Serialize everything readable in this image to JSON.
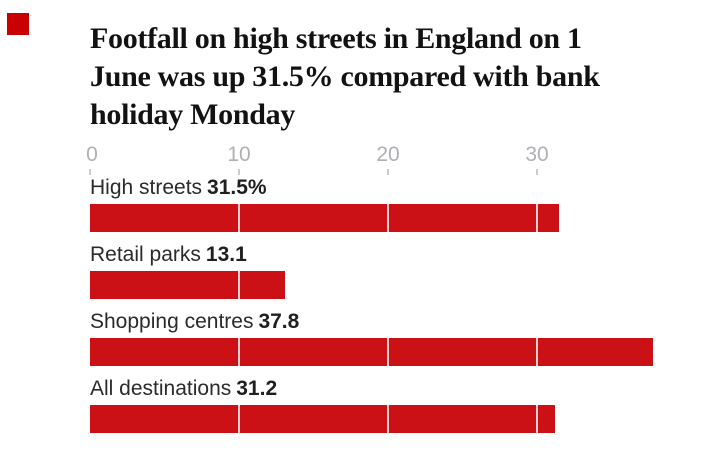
{
  "brand": {
    "square_color": "#c70000"
  },
  "title": {
    "full": "Footfall on high streets in England on 1 June was up 31.5% compared with bank holiday Monday",
    "lines": [
      "Footfall on high streets in England on 1",
      "June was up 31.5% compared with bank",
      "holiday Monday"
    ]
  },
  "chart_data": {
    "type": "bar",
    "orientation": "horizontal",
    "title": "Footfall on high streets in England on 1 June was up 31.5% compared with bank holiday Monday",
    "categories": [
      "High streets",
      "Retail parks",
      "Shopping centres",
      "All destinations"
    ],
    "values": [
      31.5,
      13.1,
      37.8,
      31.2
    ],
    "value_labels": [
      "31.5%",
      "13.1",
      "37.8",
      "31.2"
    ],
    "x_ticks": [
      "0",
      "10",
      "20",
      "30"
    ],
    "xlim": [
      0,
      41
    ],
    "xlabel": "",
    "ylabel": "",
    "grid": "white vertical gridlines visible only across bars",
    "legend": "none",
    "bar_color": "#cc1116"
  },
  "colors": {
    "background": "#ffffff",
    "bar_red": "#cc1116",
    "brand_red": "#c70000",
    "title_text": "#121212",
    "label_text": "#2b2b2b",
    "axis_text": "#b0b0b5",
    "tick_mark": "#cccccc",
    "gridline_over_bar": "rgba(255,255,255,0.8)"
  }
}
